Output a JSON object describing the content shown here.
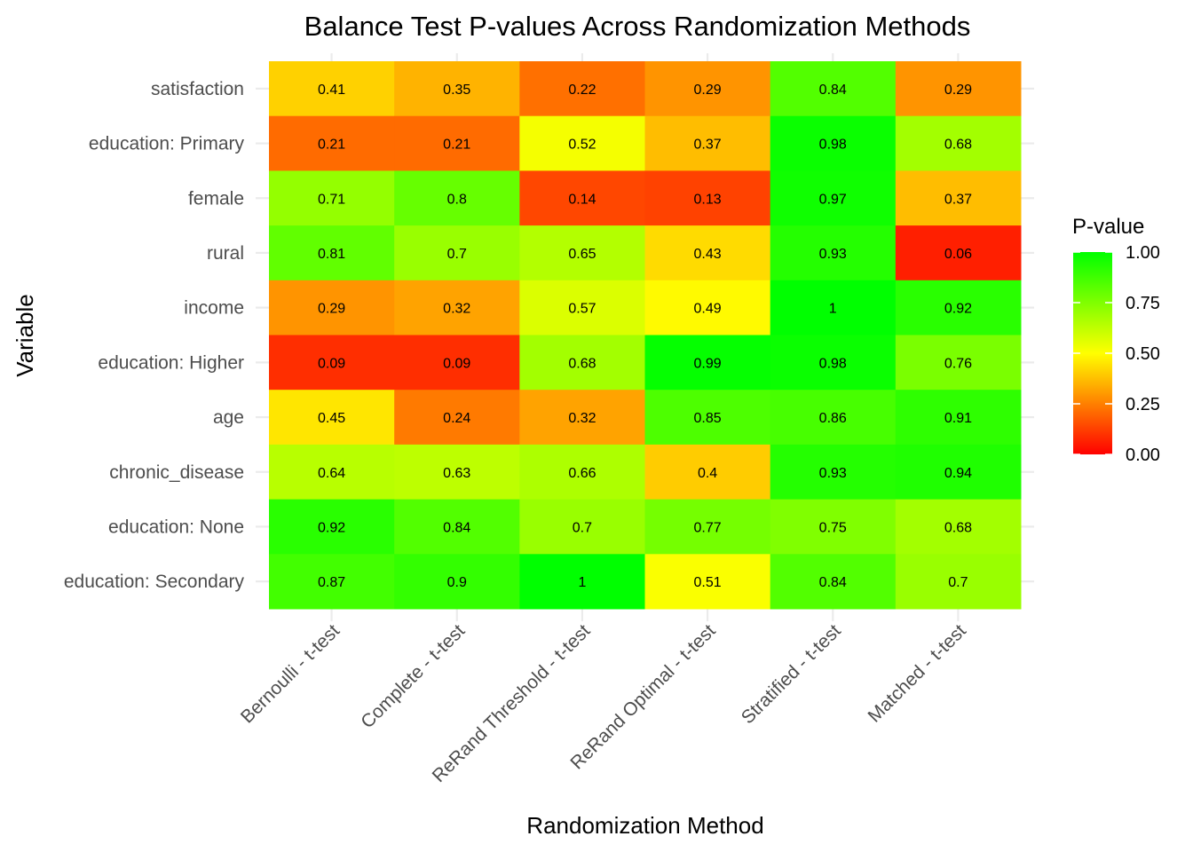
{
  "chart_data": {
    "type": "heatmap",
    "title": "Balance Test P-values Across Randomization Methods",
    "xlabel": "Randomization Method",
    "ylabel": "Variable",
    "x_categories": [
      "Bernoulli - t-test",
      "Complete - t-test",
      "ReRand Threshold - t-test",
      "ReRand Optimal - t-test",
      "Stratified - t-test",
      "Matched - t-test"
    ],
    "y_categories": [
      "satisfaction",
      "education: Primary",
      "female",
      "rural",
      "income",
      "education: Higher",
      "age",
      "chronic_disease",
      "education: None",
      "education: Secondary"
    ],
    "values": [
      [
        0.41,
        0.35,
        0.22,
        0.29,
        0.84,
        0.29
      ],
      [
        0.21,
        0.21,
        0.52,
        0.37,
        0.98,
        0.68
      ],
      [
        0.71,
        0.8,
        0.14,
        0.13,
        0.97,
        0.37
      ],
      [
        0.81,
        0.7,
        0.65,
        0.43,
        0.93,
        0.06
      ],
      [
        0.29,
        0.32,
        0.57,
        0.49,
        1,
        0.92
      ],
      [
        0.09,
        0.09,
        0.68,
        0.99,
        0.98,
        0.76
      ],
      [
        0.45,
        0.24,
        0.32,
        0.85,
        0.86,
        0.91
      ],
      [
        0.64,
        0.63,
        0.66,
        0.4,
        0.93,
        0.94
      ],
      [
        0.92,
        0.84,
        0.7,
        0.77,
        0.75,
        0.68
      ],
      [
        0.87,
        0.9,
        1,
        0.51,
        0.84,
        0.7
      ]
    ],
    "legend": {
      "title": "P-value",
      "ticks": [
        "0.00",
        "0.25",
        "0.50",
        "0.75",
        "1.00"
      ],
      "range": [
        0,
        1
      ],
      "colors": {
        "low": "#ff0000",
        "mid": "#ffff00",
        "high": "#00ff00"
      },
      "placement": "right"
    },
    "grid": true
  }
}
